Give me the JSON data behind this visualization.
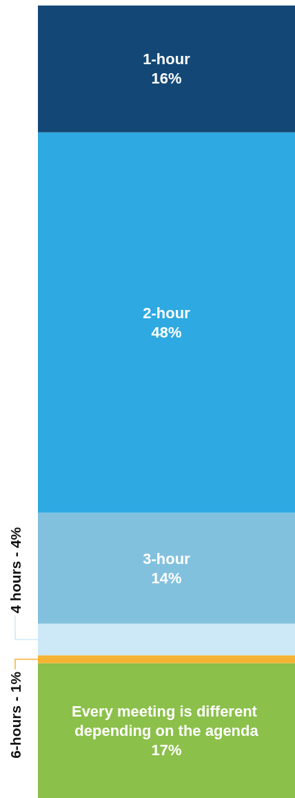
{
  "chart_data": {
    "type": "bar",
    "stacked": true,
    "categories": [
      null
    ],
    "ylim": [
      0,
      100
    ],
    "series": [
      {
        "name": "Every meeting is different depending on the agenda",
        "color": "#8bc04a",
        "values": [
          17
        ],
        "value_labels": [
          "17%"
        ]
      },
      {
        "name": "6-hours - 1%",
        "color": "#f5b333",
        "values": [
          1
        ]
      },
      {
        "name": "4 hours - 4%",
        "color": "#cde9f7",
        "values": [
          4
        ]
      },
      {
        "name": "3-hour",
        "color": "#82c1de",
        "values": [
          14
        ],
        "value_labels": [
          "14%"
        ]
      },
      {
        "name": "2-hour",
        "color": "#2ea9e2",
        "values": [
          48
        ],
        "value_labels": [
          "48%"
        ]
      },
      {
        "name": "1-hour",
        "color": "#134876",
        "values": [
          16
        ],
        "value_labels": [
          "16%"
        ]
      }
    ]
  }
}
